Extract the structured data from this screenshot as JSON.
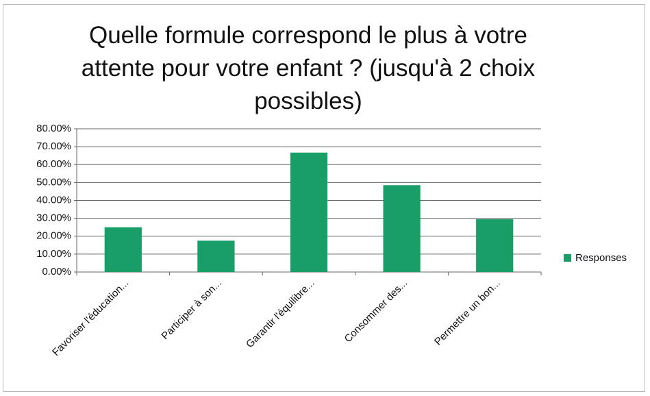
{
  "chart_data": {
    "type": "bar",
    "title": "Quelle formule correspond le plus à votre attente pour votre enfant ? (jusqu'à 2 choix possibles)",
    "categories": [
      "Favoriser l'éducation...",
      "Participer à son...",
      "Garantir l'équilibre...",
      "Consommer des...",
      "Permettre un bon..."
    ],
    "series": [
      {
        "name": "Responses",
        "color": "#1a9e68",
        "values": [
          25,
          17.5,
          66.7,
          48.5,
          29.5
        ]
      }
    ],
    "ylim": [
      0,
      80
    ],
    "yticks": [
      {
        "value": 0,
        "label": "0.00%"
      },
      {
        "value": 10,
        "label": "10.00%"
      },
      {
        "value": 20,
        "label": "20.00%"
      },
      {
        "value": 30,
        "label": "30.00%"
      },
      {
        "value": 40,
        "label": "40.00%"
      },
      {
        "value": 50,
        "label": "50.00%"
      },
      {
        "value": 60,
        "label": "60.00%"
      },
      {
        "value": 70,
        "label": "70.00%"
      },
      {
        "value": 80,
        "label": "80.00%"
      }
    ],
    "grid": true,
    "legend": "right"
  }
}
